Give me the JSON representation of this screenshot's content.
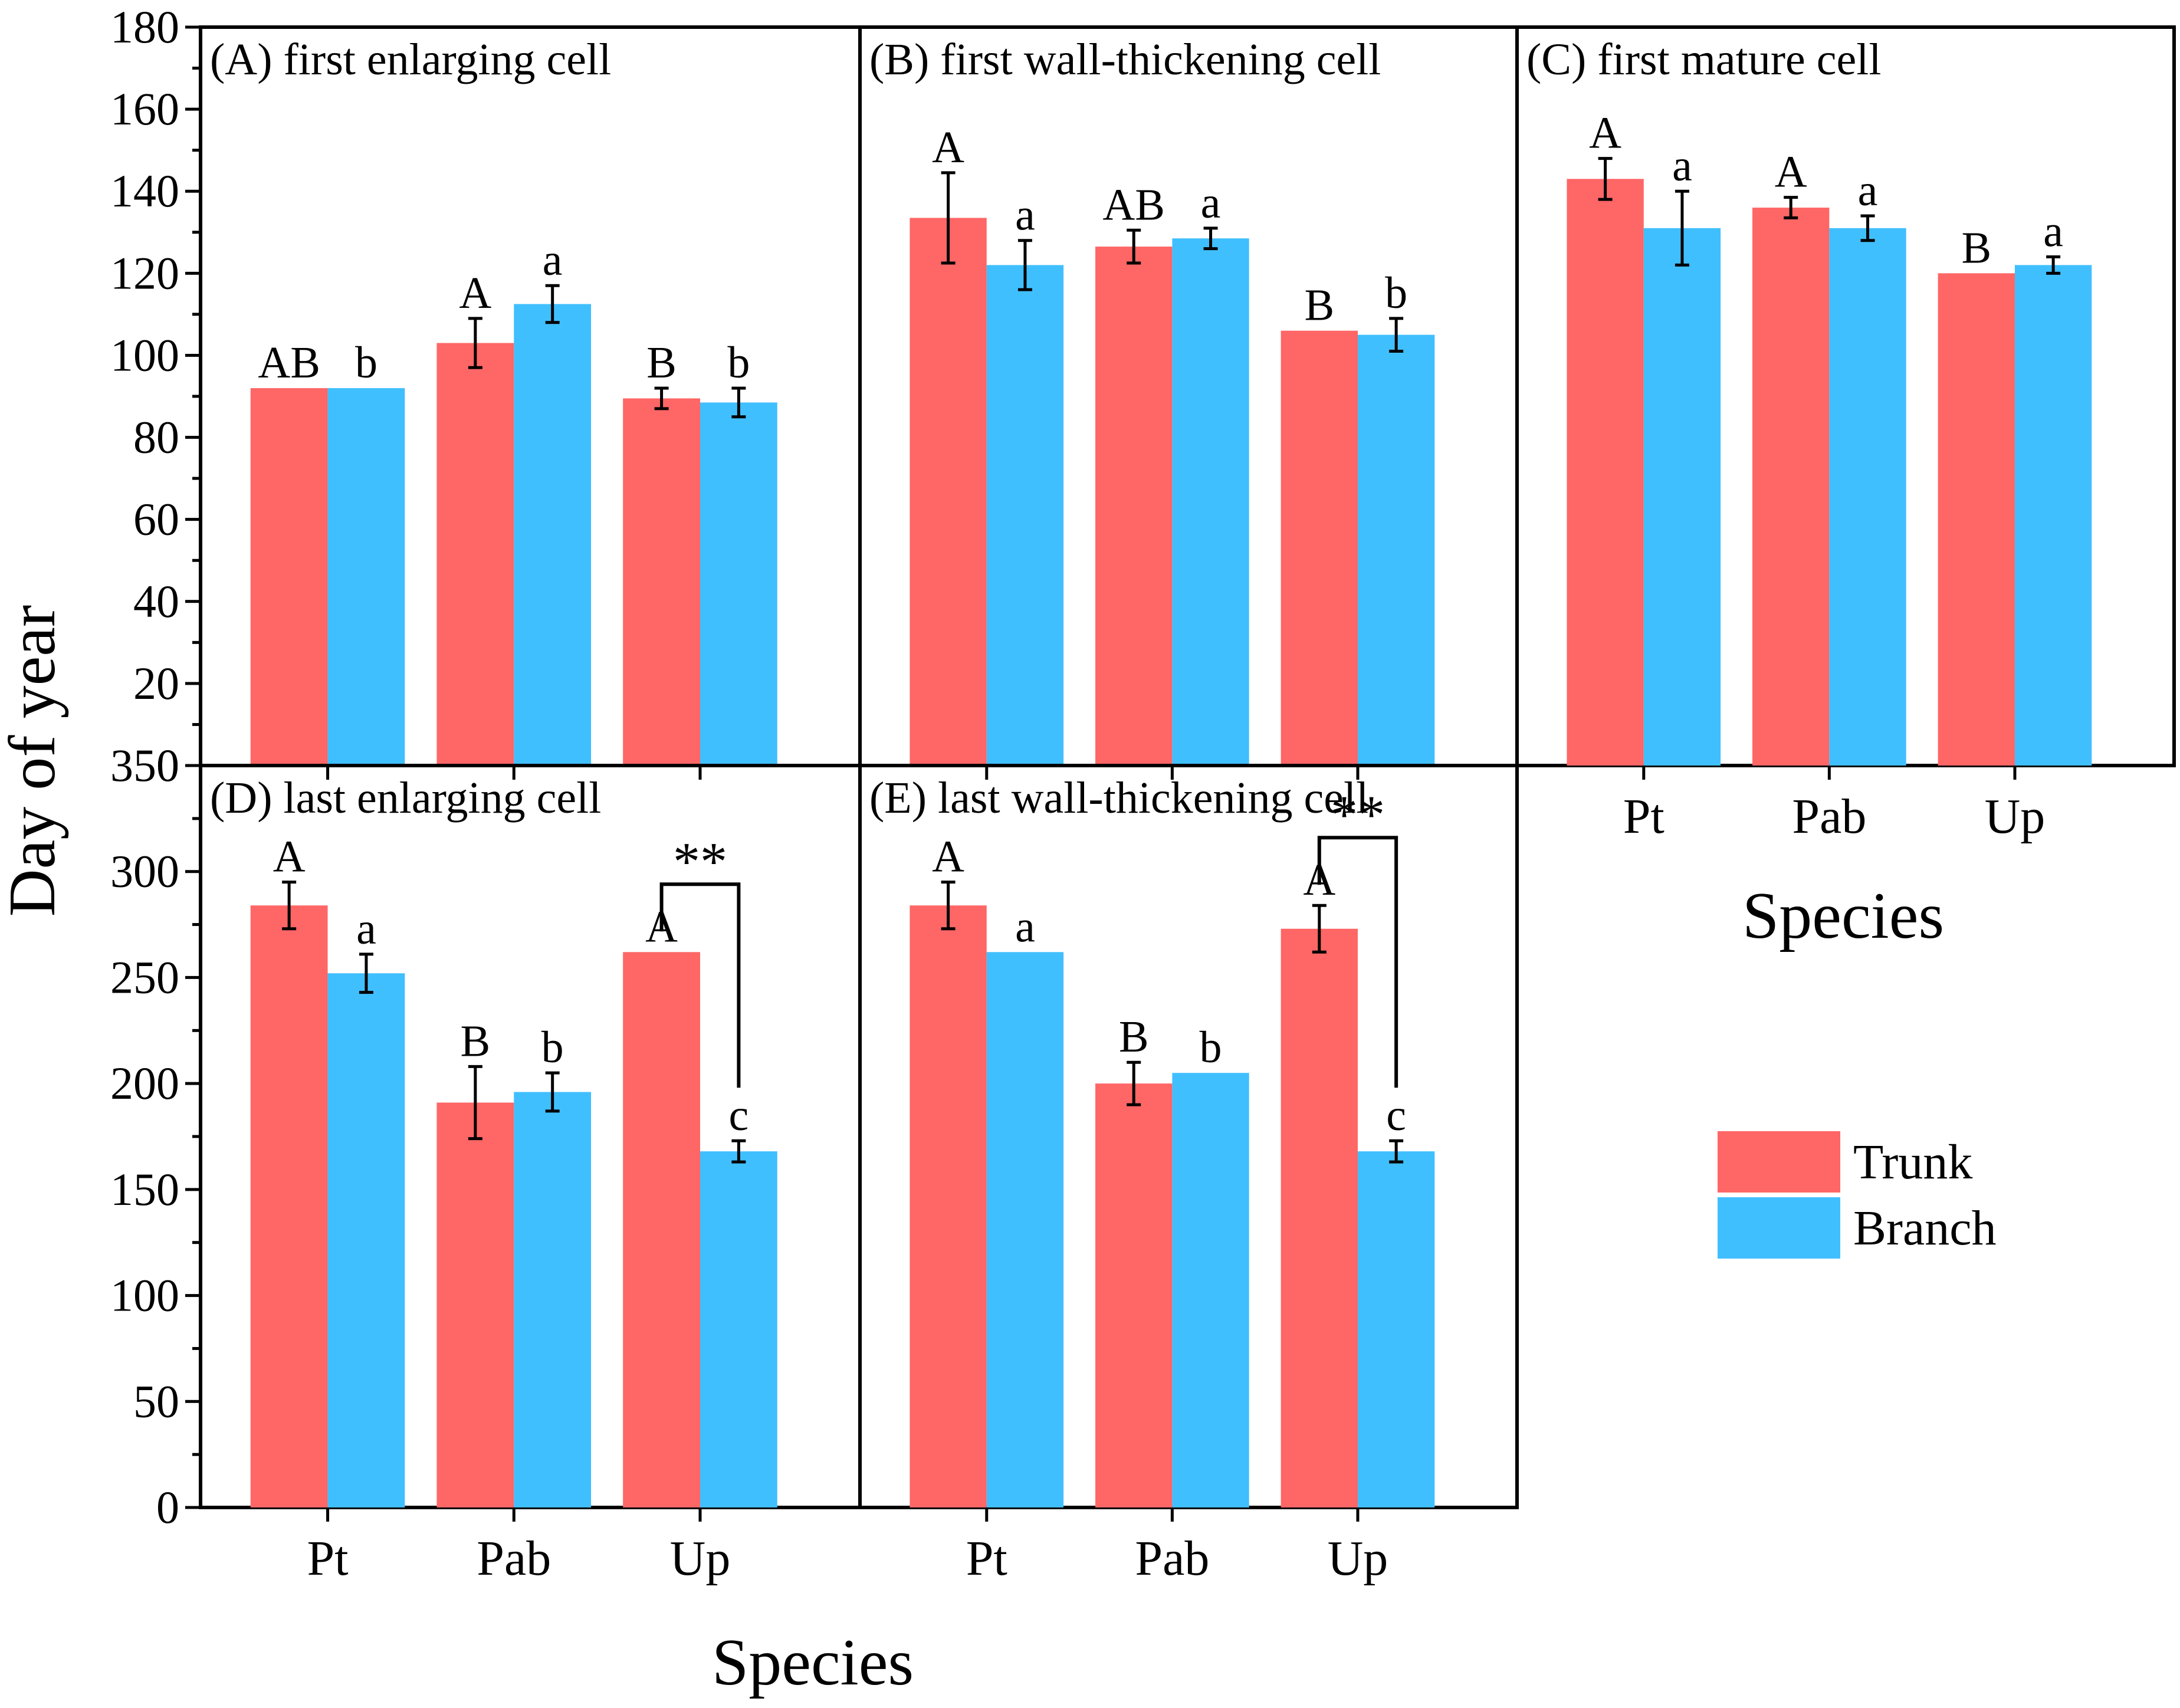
{
  "figure": {
    "y_axis_title": "Day of year",
    "x_axis_title": "Species",
    "x_axis_title_top_right": "Species"
  },
  "legend": {
    "items": [
      {
        "label": "Trunk",
        "color": "#FF6666"
      },
      {
        "label": "Branch",
        "color": "#40BFFF"
      }
    ]
  },
  "colors": {
    "trunk": "#FF6666",
    "branch": "#40BFFF",
    "axis": "#000000"
  },
  "chart_data": [
    {
      "type": "bar",
      "title": "(A) first enlarging cell",
      "categories": [
        "Pt",
        "Pab",
        "Up"
      ],
      "ylim": [
        0,
        180
      ],
      "yticks": [
        0,
        20,
        40,
        60,
        80,
        100,
        120,
        140,
        160,
        180
      ],
      "xlabel": "",
      "ylabel": "Day of year",
      "series": [
        {
          "name": "Trunk",
          "values": [
            92,
            103,
            89.5
          ],
          "errors": [
            0,
            6,
            2.5
          ],
          "letters": [
            "AB",
            "A",
            "B"
          ]
        },
        {
          "name": "Branch",
          "values": [
            92,
            112.5,
            88.5
          ],
          "errors": [
            0,
            4.5,
            3.5
          ],
          "letters": [
            "b",
            "a",
            "b"
          ]
        }
      ]
    },
    {
      "type": "bar",
      "title": "(B) first wall-thickening cell",
      "categories": [
        "Pt",
        "Pab",
        "Up"
      ],
      "ylim": [
        0,
        180
      ],
      "yticks": [
        0,
        20,
        40,
        60,
        80,
        100,
        120,
        140,
        160,
        180
      ],
      "series": [
        {
          "name": "Trunk",
          "values": [
            133.5,
            126.5,
            106
          ],
          "errors": [
            11,
            4,
            0
          ],
          "letters": [
            "A",
            "AB",
            "B"
          ]
        },
        {
          "name": "Branch",
          "values": [
            122,
            128.5,
            105
          ],
          "errors": [
            6,
            2.5,
            4
          ],
          "letters": [
            "a",
            "a",
            "b"
          ]
        }
      ]
    },
    {
      "type": "bar",
      "title": "(C) first mature cell",
      "categories": [
        "Pt",
        "Pab",
        "Up"
      ],
      "ylim": [
        0,
        180
      ],
      "yticks": [
        0,
        20,
        40,
        60,
        80,
        100,
        120,
        140,
        160,
        180
      ],
      "xlabel": "Species",
      "series": [
        {
          "name": "Trunk",
          "values": [
            143,
            136,
            120
          ],
          "errors": [
            5,
            2.5,
            0
          ],
          "letters": [
            "A",
            "A",
            "B"
          ]
        },
        {
          "name": "Branch",
          "values": [
            131,
            131,
            122
          ],
          "errors": [
            9,
            3,
            2
          ],
          "letters": [
            "a",
            "a",
            "a"
          ]
        }
      ]
    },
    {
      "type": "bar",
      "title": "(D) last enlarging cell",
      "categories": [
        "Pt",
        "Pab",
        "Up"
      ],
      "ylim": [
        0,
        350
      ],
      "yticks": [
        0,
        50,
        100,
        150,
        200,
        250,
        300,
        350
      ],
      "xlabel": "Species",
      "ylabel": "Day of year",
      "series": [
        {
          "name": "Trunk",
          "values": [
            284,
            191,
            262
          ],
          "errors": [
            11,
            17,
            0
          ],
          "letters": [
            "A",
            "B",
            "A"
          ]
        },
        {
          "name": "Branch",
          "values": [
            252,
            196,
            168
          ],
          "errors": [
            9,
            9,
            5
          ],
          "letters": [
            "a",
            "b",
            "c"
          ]
        }
      ],
      "annotation": {
        "text": "**",
        "category": "Up"
      }
    },
    {
      "type": "bar",
      "title": "(E) last wall-thickening cell",
      "categories": [
        "Pt",
        "Pab",
        "Up"
      ],
      "ylim": [
        0,
        350
      ],
      "yticks": [
        0,
        50,
        100,
        150,
        200,
        250,
        300,
        350
      ],
      "xlabel": "Species",
      "series": [
        {
          "name": "Trunk",
          "values": [
            284,
            200,
            273
          ],
          "errors": [
            11,
            10,
            11
          ],
          "letters": [
            "A",
            "B",
            "A"
          ]
        },
        {
          "name": "Branch",
          "values": [
            262,
            205,
            168
          ],
          "errors": [
            0,
            0,
            5
          ],
          "letters": [
            "a",
            "b",
            "c"
          ]
        }
      ],
      "annotation": {
        "text": "**",
        "category": "Up"
      }
    }
  ]
}
